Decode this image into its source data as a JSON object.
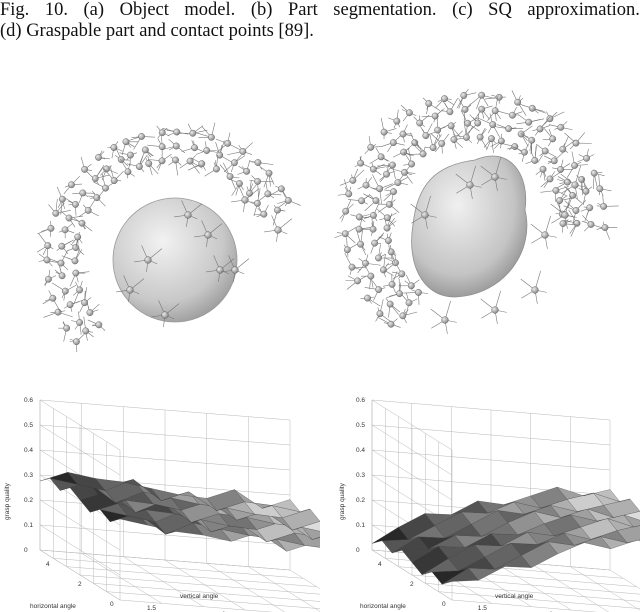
{
  "caption": {
    "line1_words": [
      "Fig.",
      "10.",
      "(a)",
      "Object",
      "model.",
      "(b)",
      "Part",
      "segmentation.",
      "(c)",
      "SQ",
      "approximation."
    ],
    "line2": "(d) Graspable part and contact points [89]."
  },
  "chart_data": [
    {
      "type": "surface",
      "panel": "bottom-left",
      "title": "",
      "xlabel": "vertical angle",
      "ylabel": "horizontal angle",
      "zlabel": "grasp quality",
      "z_ticks": [
        "0",
        "0.1",
        "0.2",
        "0.3",
        "0.4",
        "0.5",
        "0.6"
      ],
      "x_ticks": [
        "0",
        "0.5",
        "1",
        "1.5"
      ],
      "y_ticks": [
        "0",
        "2",
        "4"
      ],
      "zlim": [
        0,
        0.6
      ],
      "grid": true,
      "surface_level": [
        0.3,
        0.32,
        0.28,
        0.31,
        0.27,
        0.29,
        0.26,
        0.28,
        0.25,
        0.27
      ]
    },
    {
      "type": "surface",
      "panel": "bottom-right",
      "title": "",
      "xlabel": "vertical angle",
      "ylabel": "horizontal angle",
      "zlabel": "grasp quality",
      "z_ticks": [
        "0",
        "0.1",
        "0.2",
        "0.3",
        "0.4",
        "0.5",
        "0.6"
      ],
      "x_ticks": [
        "0",
        "0.5",
        "1",
        "1.5"
      ],
      "y_ticks": [
        "0",
        "2",
        "4"
      ],
      "zlim": [
        0,
        0.6
      ],
      "grid": true,
      "surface_level": [
        0.05,
        0.1,
        0.14,
        0.18,
        0.22,
        0.25,
        0.27,
        0.29,
        0.3,
        0.31
      ]
    }
  ],
  "colors": {
    "sphere": "#c8c8c8",
    "spikes": "#777777",
    "surface_dark": "#1a1a1a",
    "surface_light": "#e8e8e8"
  }
}
